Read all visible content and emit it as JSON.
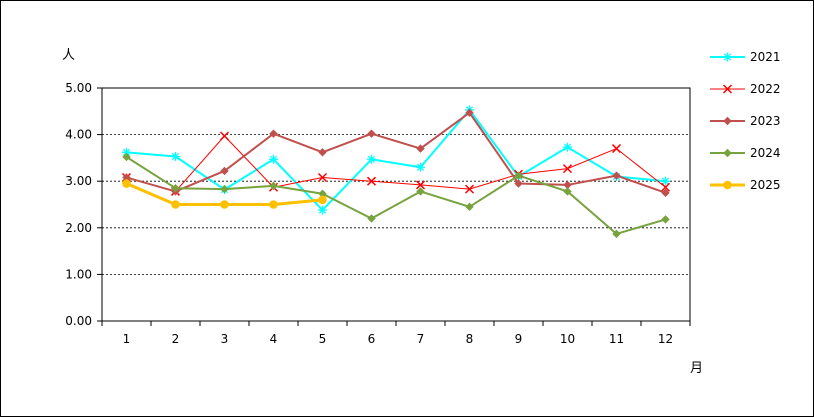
{
  "chart_data": {
    "type": "line",
    "ylabel": "人",
    "xlabel": "月",
    "categories": [
      "1",
      "2",
      "3",
      "4",
      "5",
      "6",
      "7",
      "8",
      "9",
      "10",
      "11",
      "12"
    ],
    "yticks": [
      "0.00",
      "1.00",
      "2.00",
      "3.00",
      "4.00",
      "5.00"
    ],
    "ylim": [
      0,
      5
    ],
    "grid": true,
    "legend_position": "right",
    "series": [
      {
        "name": "2021",
        "color": "#00FFFF",
        "marker": "asterisk",
        "values": [
          3.62,
          3.53,
          2.82,
          3.47,
          2.38,
          3.47,
          3.3,
          4.53,
          3.1,
          3.73,
          3.1,
          3.0
        ]
      },
      {
        "name": "2022",
        "color": "#FF0000",
        "marker": "x",
        "values": [
          3.08,
          2.78,
          3.97,
          2.87,
          3.08,
          3.0,
          2.92,
          2.83,
          3.15,
          3.27,
          3.7,
          2.87
        ]
      },
      {
        "name": "2023",
        "color": "#C0504D",
        "marker": "diamond",
        "values": [
          3.08,
          2.78,
          3.22,
          4.02,
          3.62,
          4.02,
          3.7,
          4.47,
          2.95,
          2.92,
          3.12,
          2.75
        ]
      },
      {
        "name": "2024",
        "color": "#77A33F",
        "marker": "diamond",
        "values": [
          3.52,
          2.85,
          2.83,
          2.9,
          2.73,
          2.2,
          2.78,
          2.45,
          3.12,
          2.78,
          1.87,
          2.18
        ]
      },
      {
        "name": "2025",
        "color": "#FFC000",
        "marker": "circle",
        "values": [
          2.95,
          2.5,
          2.5,
          2.5,
          2.6,
          null,
          null,
          null,
          null,
          null,
          null,
          null
        ]
      }
    ]
  }
}
